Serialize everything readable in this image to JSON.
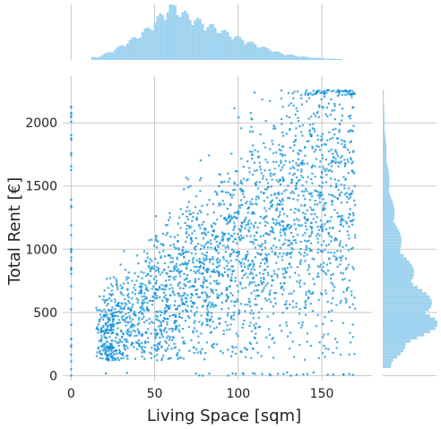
{
  "chart_data": {
    "type": "scatter",
    "variant": "jointplot with marginal histograms",
    "xlabel": "Living Space [sqm]",
    "ylabel": "Total Rent [€]",
    "xlim": [
      -5,
      180
    ],
    "ylim": [
      -40,
      2370
    ],
    "xticks": [
      0,
      50,
      100,
      150
    ],
    "yticks": [
      0,
      500,
      1000,
      1500,
      2000
    ],
    "xtick_labels": [
      "0",
      "50",
      "100",
      "150"
    ],
    "ytick_labels": [
      "0",
      "500",
      "1000",
      "1500",
      "2000"
    ],
    "grid": true,
    "legend": "none",
    "color": "#0a8ed6",
    "marginal_color": "#9fd3ef",
    "grid_color": "#c8c8c8",
    "approx_trend": {
      "x": [
        20,
        40,
        60,
        80,
        100,
        120,
        140,
        160
      ],
      "y_median": [
        350,
        500,
        650,
        820,
        1000,
        1180,
        1350,
        1500
      ]
    },
    "marginal_x_density": {
      "x": [
        15,
        25,
        35,
        45,
        55,
        60,
        65,
        75,
        85,
        95,
        105,
        115,
        125,
        135,
        145,
        155
      ],
      "relative_height": [
        0.05,
        0.18,
        0.35,
        0.55,
        0.85,
        1.0,
        0.85,
        0.7,
        0.58,
        0.45,
        0.33,
        0.22,
        0.12,
        0.07,
        0.04,
        0.02
      ]
    },
    "marginal_y_density": {
      "y": [
        100,
        250,
        400,
        500,
        600,
        700,
        800,
        900,
        1000,
        1200,
        1400,
        1600,
        1800,
        2000,
        2200
      ],
      "relative_height": [
        0.15,
        0.55,
        1.0,
        0.95,
        0.8,
        0.65,
        0.55,
        0.45,
        0.35,
        0.25,
        0.15,
        0.1,
        0.06,
        0.03,
        0.02
      ]
    }
  }
}
